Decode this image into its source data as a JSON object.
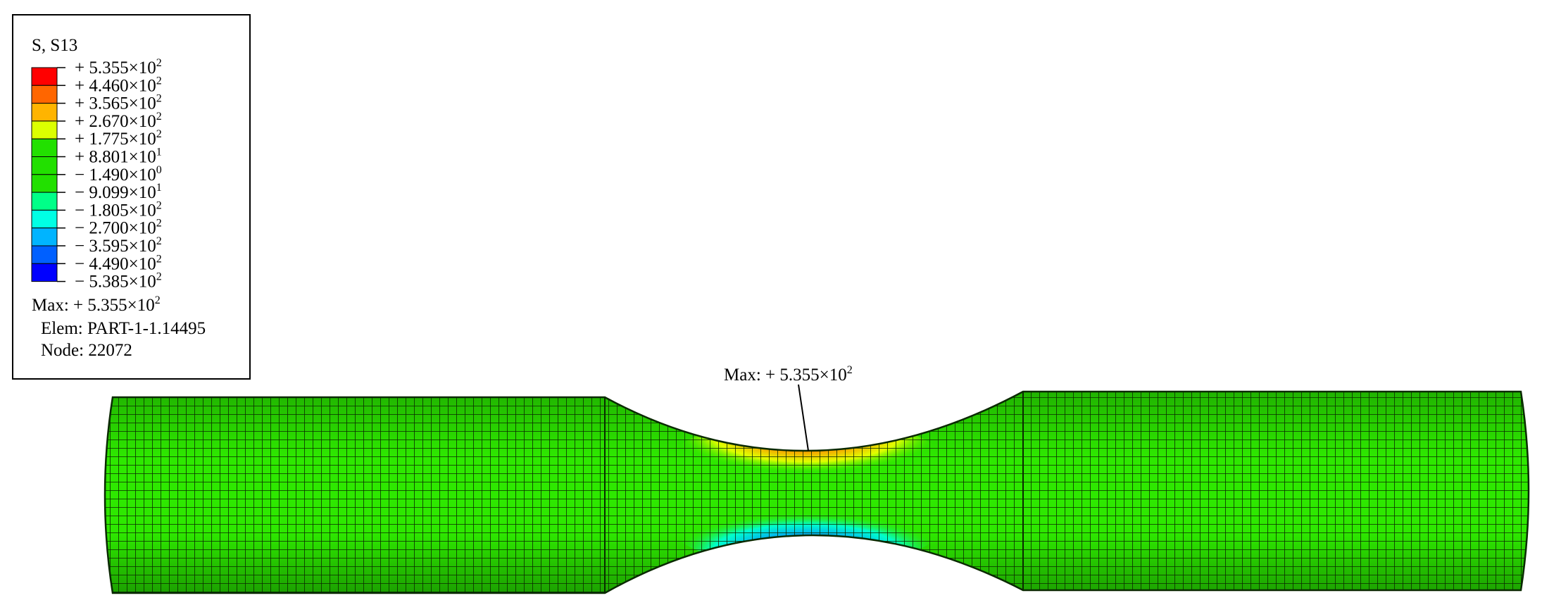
{
  "legend": {
    "title": "S, S13",
    "entries": [
      {
        "coefficient": "+ 5.355×10",
        "exponent": "2"
      },
      {
        "coefficient": "+ 4.460×10",
        "exponent": "2"
      },
      {
        "coefficient": "+ 3.565×10",
        "exponent": "2"
      },
      {
        "coefficient": "+ 2.670×10",
        "exponent": "2"
      },
      {
        "coefficient": "+ 1.775×10",
        "exponent": "2"
      },
      {
        "coefficient": "+ 8.801×10",
        "exponent": "1"
      },
      {
        "coefficient": "− 1.490×10",
        "exponent": "0"
      },
      {
        "coefficient": "− 9.099×10",
        "exponent": "1"
      },
      {
        "coefficient": "− 1.805×10",
        "exponent": "2"
      },
      {
        "coefficient": "− 2.700×10",
        "exponent": "2"
      },
      {
        "coefficient": "− 3.595×10",
        "exponent": "2"
      },
      {
        "coefficient": "− 4.490×10",
        "exponent": "2"
      },
      {
        "coefficient": "− 5.385×10",
        "exponent": "2"
      }
    ],
    "colors": [
      "#ff0000",
      "#ff6600",
      "#ffb400",
      "#dcff00",
      "#22e000",
      "#22e000",
      "#22e000",
      "#00ff88",
      "#00ffe4",
      "#00b4ff",
      "#0060ff",
      "#0000ff"
    ],
    "max": {
      "coefficient": "Max: + 5.355×10",
      "exponent": "2"
    },
    "element": "Elem: PART-1-1.14495",
    "node": "Node: 22072"
  },
  "annotation": {
    "coefficient": "Max: + 5.355×10",
    "exponent": "2"
  }
}
